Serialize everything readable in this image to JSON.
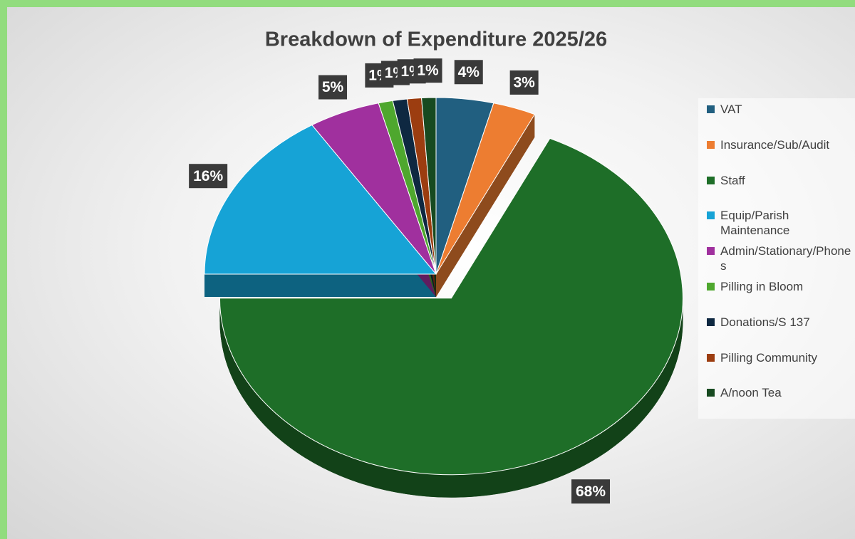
{
  "chart_data": {
    "type": "pie",
    "title": "Breakdown of Expenditure 2025/26",
    "categories": [
      "VAT",
      "Insurance/Sub/Audit",
      "Staff",
      "Equip/Parish Maintenance",
      "Admin/Stationary/Phones",
      "Pilling in Bloom",
      "Donations/S 137",
      "Pilling Community",
      "A/noon Tea"
    ],
    "values": [
      4,
      3,
      68,
      16,
      5,
      1,
      1,
      1,
      1
    ],
    "value_labels": [
      "4%",
      "3%",
      "68%",
      "16%",
      "5%",
      "1%",
      "1%",
      "1%",
      "1%"
    ],
    "colors": [
      "#215f80",
      "#ed7d31",
      "#1e6e28",
      "#16a3d6",
      "#a0309e",
      "#4ea72e",
      "#0e2841",
      "#9c3d10",
      "#174a20"
    ],
    "legend": "right"
  }
}
